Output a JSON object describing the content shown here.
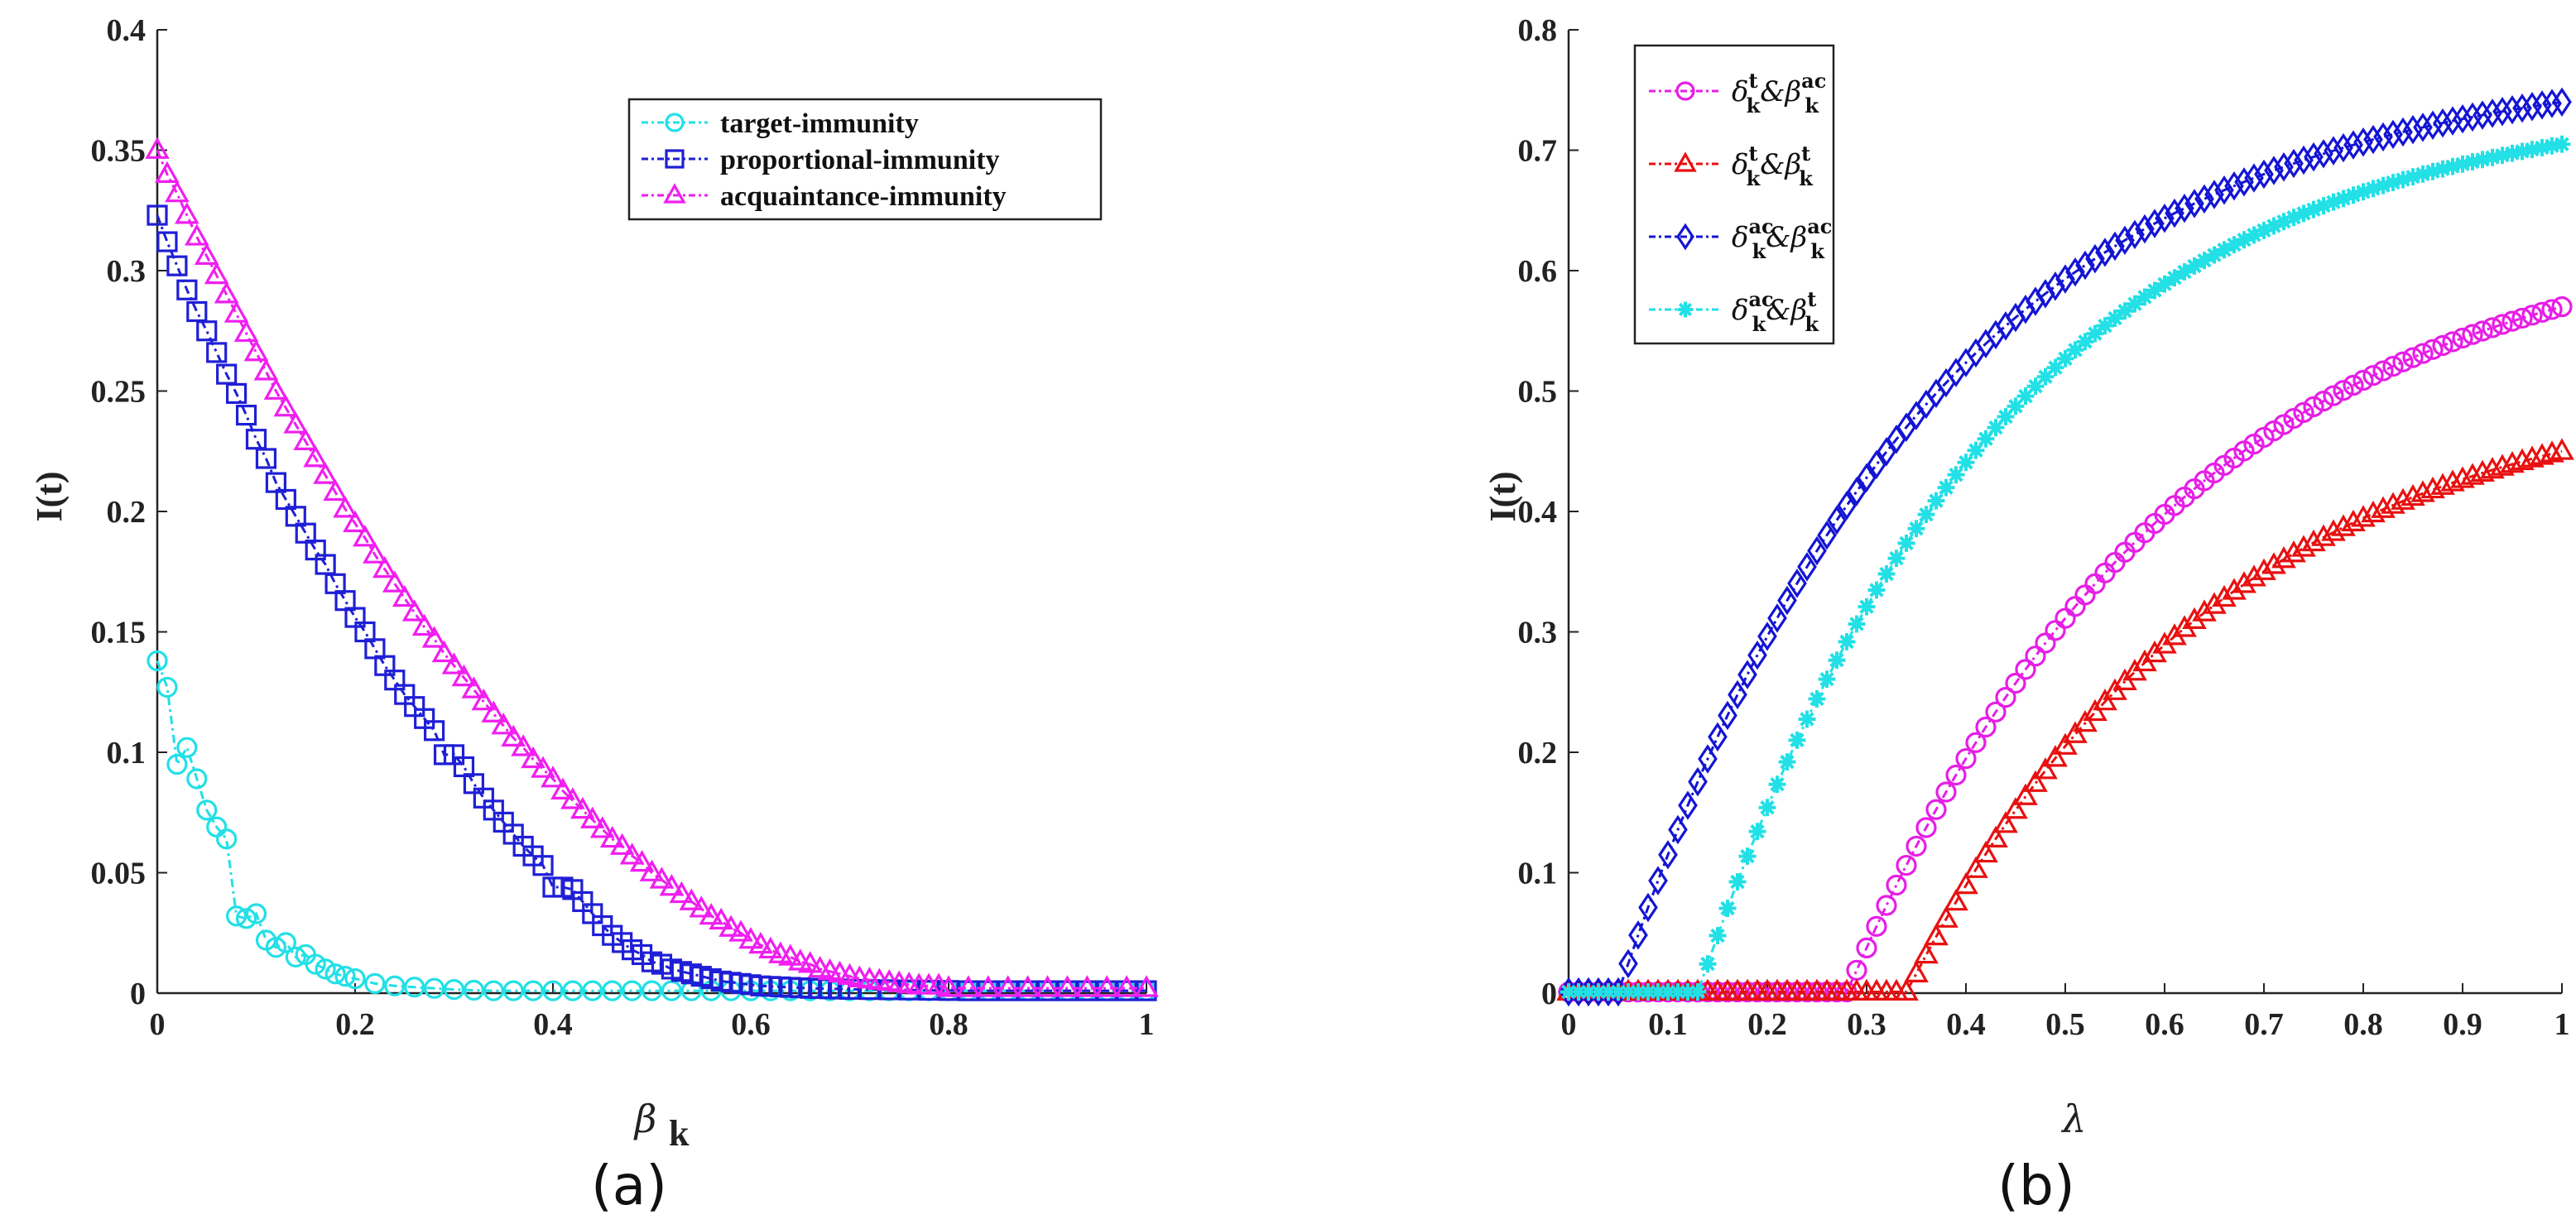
{
  "chart_data": [
    {
      "type": "line",
      "panel": "a",
      "caption": "(a)",
      "xlabel": "β",
      "xlabel_sub": "k",
      "ylabel": "I(t)",
      "xlim": [
        0,
        1
      ],
      "ylim": [
        0,
        0.4
      ],
      "xticks": [
        "0",
        "0.2",
        "0.4",
        "0.6",
        "0.8",
        "1"
      ],
      "yticks": [
        "0",
        "0.05",
        "0.1",
        "0.15",
        "0.2",
        "0.25",
        "0.3",
        "0.35",
        "0.4"
      ],
      "legend_position": "top-right",
      "series": [
        {
          "name": "target-immunity",
          "color": "#22e0e6",
          "marker": "circle",
          "x": [
            0,
            0.01,
            0.02,
            0.03,
            0.04,
            0.05,
            0.06,
            0.07,
            0.08,
            0.09,
            0.1,
            0.11,
            0.12,
            0.13,
            0.14,
            0.15,
            0.16,
            0.17,
            0.18,
            0.19,
            0.2,
            0.22,
            0.24,
            0.26,
            0.28,
            0.3,
            0.32,
            0.34,
            0.36,
            0.38,
            0.4,
            0.42,
            0.44,
            0.46,
            0.48,
            0.5,
            0.52,
            0.54,
            0.56,
            0.58,
            0.6,
            0.62,
            0.64,
            0.66,
            0.68,
            0.7,
            0.72,
            0.74,
            0.76,
            0.78,
            0.8,
            0.82,
            0.84,
            0.86,
            0.88,
            0.9,
            0.92,
            0.94,
            0.96,
            0.98,
            1.0
          ],
          "y": [
            0.138,
            0.127,
            0.095,
            0.102,
            0.089,
            0.076,
            0.069,
            0.064,
            0.032,
            0.031,
            0.033,
            0.022,
            0.019,
            0.021,
            0.015,
            0.016,
            0.012,
            0.01,
            0.008,
            0.007,
            0.006,
            0.004,
            0.003,
            0.0025,
            0.002,
            0.0015,
            0.0012,
            0.001,
            0.001,
            0.001,
            0.001,
            0.001,
            0.001,
            0.001,
            0.001,
            0.001,
            0.001,
            0.001,
            0.001,
            0.001,
            0.001,
            0.001,
            0.001,
            0.001,
            0.001,
            0.001,
            0.001,
            0.001,
            0.001,
            0.001,
            0.001,
            0.001,
            0.001,
            0.001,
            0.001,
            0.001,
            0.001,
            0.001,
            0.001,
            0.001,
            0.001
          ]
        },
        {
          "name": "proportional-immunity",
          "color": "#1f1fd6",
          "marker": "square",
          "x": [
            0,
            0.01,
            0.02,
            0.03,
            0.04,
            0.05,
            0.06,
            0.07,
            0.08,
            0.09,
            0.1,
            0.11,
            0.12,
            0.13,
            0.14,
            0.15,
            0.16,
            0.17,
            0.18,
            0.19,
            0.2,
            0.21,
            0.22,
            0.23,
            0.24,
            0.25,
            0.26,
            0.27,
            0.28,
            0.29,
            0.3,
            0.31,
            0.32,
            0.33,
            0.34,
            0.35,
            0.36,
            0.37,
            0.38,
            0.39,
            0.4,
            0.41,
            0.42,
            0.43,
            0.44,
            0.45,
            0.46,
            0.47,
            0.48,
            0.49,
            0.5,
            0.51,
            0.52,
            0.53,
            0.54,
            0.55,
            0.56,
            0.57,
            0.58,
            0.59,
            0.6,
            0.61,
            0.62,
            0.63,
            0.64,
            0.65,
            0.66,
            0.67,
            0.68,
            0.69,
            0.7,
            0.72,
            0.74,
            0.76,
            0.78,
            0.8,
            0.82,
            0.84,
            0.86,
            0.88,
            0.9,
            0.92,
            0.94,
            0.96,
            0.98,
            1.0
          ],
          "y": [
            0.323,
            0.312,
            0.302,
            0.292,
            0.283,
            0.275,
            0.266,
            0.257,
            0.249,
            0.24,
            0.23,
            0.222,
            0.212,
            0.205,
            0.198,
            0.191,
            0.184,
            0.178,
            0.17,
            0.163,
            0.156,
            0.15,
            0.143,
            0.136,
            0.13,
            0.124,
            0.119,
            0.114,
            0.109,
            0.099,
            0.099,
            0.094,
            0.087,
            0.081,
            0.076,
            0.071,
            0.066,
            0.061,
            0.057,
            0.053,
            0.044,
            0.044,
            0.043,
            0.038,
            0.033,
            0.028,
            0.024,
            0.021,
            0.018,
            0.016,
            0.013,
            0.012,
            0.01,
            0.009,
            0.008,
            0.007,
            0.006,
            0.005,
            0.0045,
            0.004,
            0.0035,
            0.003,
            0.0028,
            0.0026,
            0.0024,
            0.0022,
            0.002,
            0.0019,
            0.0018,
            0.0017,
            0.0016,
            0.0015,
            0.0014,
            0.0013,
            0.0012,
            0.0011,
            0.001,
            0.001,
            0.001,
            0.001,
            0.001,
            0.001,
            0.001,
            0.001,
            0.001,
            0.001
          ]
        },
        {
          "name": "acquaintance-immunity",
          "color": "#f01ef0",
          "marker": "triangle",
          "x": [
            0,
            0.01,
            0.02,
            0.03,
            0.04,
            0.05,
            0.06,
            0.07,
            0.08,
            0.09,
            0.1,
            0.11,
            0.12,
            0.13,
            0.14,
            0.15,
            0.16,
            0.17,
            0.18,
            0.19,
            0.2,
            0.21,
            0.22,
            0.23,
            0.24,
            0.25,
            0.26,
            0.27,
            0.28,
            0.29,
            0.3,
            0.31,
            0.32,
            0.33,
            0.34,
            0.35,
            0.36,
            0.37,
            0.38,
            0.39,
            0.4,
            0.41,
            0.42,
            0.43,
            0.44,
            0.45,
            0.46,
            0.47,
            0.48,
            0.49,
            0.5,
            0.51,
            0.52,
            0.53,
            0.54,
            0.55,
            0.56,
            0.57,
            0.58,
            0.59,
            0.6,
            0.61,
            0.62,
            0.63,
            0.64,
            0.65,
            0.66,
            0.67,
            0.68,
            0.69,
            0.7,
            0.71,
            0.72,
            0.73,
            0.74,
            0.75,
            0.76,
            0.77,
            0.78,
            0.79,
            0.8,
            0.82,
            0.84,
            0.86,
            0.88,
            0.9,
            0.92,
            0.94,
            0.96,
            0.98,
            1.0
          ],
          "y": [
            0.35,
            0.34,
            0.332,
            0.323,
            0.314,
            0.306,
            0.298,
            0.29,
            0.282,
            0.274,
            0.266,
            0.258,
            0.25,
            0.243,
            0.236,
            0.229,
            0.222,
            0.215,
            0.208,
            0.201,
            0.195,
            0.189,
            0.182,
            0.176,
            0.17,
            0.164,
            0.158,
            0.152,
            0.147,
            0.141,
            0.136,
            0.131,
            0.126,
            0.121,
            0.116,
            0.111,
            0.106,
            0.102,
            0.097,
            0.093,
            0.089,
            0.084,
            0.08,
            0.076,
            0.072,
            0.068,
            0.064,
            0.061,
            0.057,
            0.054,
            0.05,
            0.047,
            0.044,
            0.041,
            0.038,
            0.035,
            0.032,
            0.03,
            0.027,
            0.025,
            0.022,
            0.02,
            0.018,
            0.016,
            0.015,
            0.013,
            0.012,
            0.01,
            0.009,
            0.008,
            0.007,
            0.006,
            0.0055,
            0.005,
            0.0045,
            0.004,
            0.0035,
            0.003,
            0.003,
            0.003,
            0.002,
            0.002,
            0.002,
            0.002,
            0.002,
            0.002,
            0.002,
            0.002,
            0.002,
            0.002,
            0.002
          ]
        }
      ]
    },
    {
      "type": "line",
      "panel": "b",
      "caption": "(b)",
      "xlabel": "λ",
      "ylabel": "I(t)",
      "xlim": [
        0,
        1
      ],
      "ylim": [
        0,
        0.8
      ],
      "xticks": [
        "0",
        "0.1",
        "0.2",
        "0.3",
        "0.4",
        "0.5",
        "0.6",
        "0.7",
        "0.8",
        "0.9",
        "1"
      ],
      "yticks": [
        "0",
        "0.1",
        "0.2",
        "0.3",
        "0.4",
        "0.5",
        "0.6",
        "0.7",
        "0.8"
      ],
      "legend_position": "top-left",
      "series": [
        {
          "name_base": "δ",
          "name_sup1": "t",
          "name_sub1": "k",
          "name_mid": "&β",
          "name_sup2": "ac",
          "name_sub2": "k",
          "color": "#e61ee6",
          "marker": "circle",
          "onset": 0.28,
          "scale": 0.575,
          "rate": 3.0,
          "y_end": 0.57
        },
        {
          "name_base": "δ",
          "name_sup1": "t",
          "name_sub1": "k",
          "name_mid": "&β",
          "name_sup2": "t",
          "name_sub2": "k",
          "color": "#e81010",
          "marker": "triangle",
          "onset": 0.34,
          "scale": 0.47,
          "rate": 3.2,
          "y_end": 0.45
        },
        {
          "name_base": "δ",
          "name_sup1": "ac",
          "name_sub1": "k",
          "name_mid": "&β",
          "name_sup2": "ac",
          "name_sub2": "k",
          "color": "#1414d4",
          "marker": "diamond",
          "onset": 0.05,
          "scale": 0.78,
          "rate": 3.2,
          "y_end": 0.74
        },
        {
          "name_base": "δ",
          "name_sup1": "ac",
          "name_sub1": "k",
          "name_mid": "&β",
          "name_sup2": "t",
          "name_sub2": "k",
          "color": "#22e0e6",
          "marker": "star",
          "onset": 0.13,
          "scale": 0.74,
          "rate": 3.3,
          "y_end": 0.705
        }
      ]
    }
  ]
}
